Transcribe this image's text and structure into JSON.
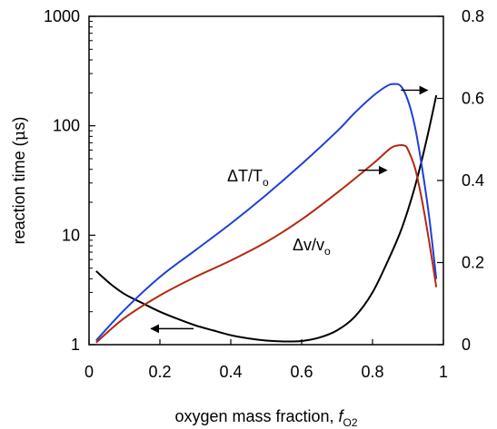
{
  "chart_data": {
    "type": "line",
    "xlabel_main": "oxygen mass fraction, ",
    "xlabel_var": "f",
    "xlabel_sub": "O2",
    "ylabel_left_a": "reaction time (",
    "ylabel_left_mu": "μ",
    "ylabel_left_b": "s)",
    "ylabel_right": "",
    "xlim": [
      0,
      1
    ],
    "ylim_left": [
      1,
      1000
    ],
    "yscale_left": "log",
    "ylim_right": [
      0,
      0.8
    ],
    "x_ticks": [
      "0",
      "0.2",
      "0.4",
      "0.6",
      "0.8",
      "1"
    ],
    "y_left_ticks": [
      "1",
      "10",
      "100",
      "1000"
    ],
    "y_right_ticks": [
      "0",
      "0.2",
      "0.4",
      "0.6",
      "0.8"
    ],
    "grid": false,
    "annotations": {
      "dT": {
        "main": "ΔT/T",
        "sub": "o"
      },
      "dv": {
        "main": "Δv/v",
        "sub": "o"
      }
    },
    "series": [
      {
        "key": "reaction_time",
        "axis": "left",
        "color": "#000000",
        "x": [
          0.02,
          0.06,
          0.1,
          0.15,
          0.2,
          0.25,
          0.3,
          0.35,
          0.4,
          0.45,
          0.5,
          0.55,
          0.6,
          0.65,
          0.7,
          0.75,
          0.8,
          0.85,
          0.88,
          0.9,
          0.92,
          0.94,
          0.96,
          0.98
        ],
        "values": [
          4.7,
          3.6,
          2.9,
          2.4,
          2.0,
          1.72,
          1.5,
          1.35,
          1.22,
          1.14,
          1.09,
          1.07,
          1.08,
          1.16,
          1.35,
          1.8,
          3.0,
          6.5,
          11.0,
          17.0,
          28.0,
          50.0,
          95.0,
          190.0
        ]
      },
      {
        "key": "dT_over_To",
        "axis": "right",
        "color": "#1f3fd8",
        "x": [
          0.02,
          0.1,
          0.2,
          0.3,
          0.4,
          0.5,
          0.6,
          0.7,
          0.75,
          0.8,
          0.84,
          0.86,
          0.88,
          0.9,
          0.92,
          0.94,
          0.96,
          0.98
        ],
        "values": [
          0.01,
          0.085,
          0.165,
          0.23,
          0.295,
          0.365,
          0.44,
          0.52,
          0.565,
          0.605,
          0.63,
          0.635,
          0.63,
          0.595,
          0.53,
          0.43,
          0.31,
          0.16
        ]
      },
      {
        "key": "dv_over_vo",
        "axis": "right",
        "color": "#b22a10",
        "x": [
          0.02,
          0.1,
          0.2,
          0.3,
          0.4,
          0.5,
          0.6,
          0.7,
          0.8,
          0.85,
          0.87,
          0.89,
          0.9,
          0.92,
          0.94,
          0.96,
          0.98
        ],
        "values": [
          0.005,
          0.065,
          0.12,
          0.165,
          0.205,
          0.25,
          0.305,
          0.37,
          0.44,
          0.478,
          0.485,
          0.485,
          0.475,
          0.43,
          0.35,
          0.25,
          0.14
        ]
      }
    ],
    "arrows": [
      {
        "from": [
          0.295,
          1.4
        ],
        "to": [
          0.175,
          1.4
        ],
        "axis": "left"
      },
      {
        "from": [
          0.76,
          0.425
        ],
        "to": [
          0.84,
          0.425
        ],
        "axis": "right"
      },
      {
        "from": [
          0.88,
          0.62
        ],
        "to": [
          0.955,
          0.62
        ],
        "axis": "right"
      }
    ]
  }
}
